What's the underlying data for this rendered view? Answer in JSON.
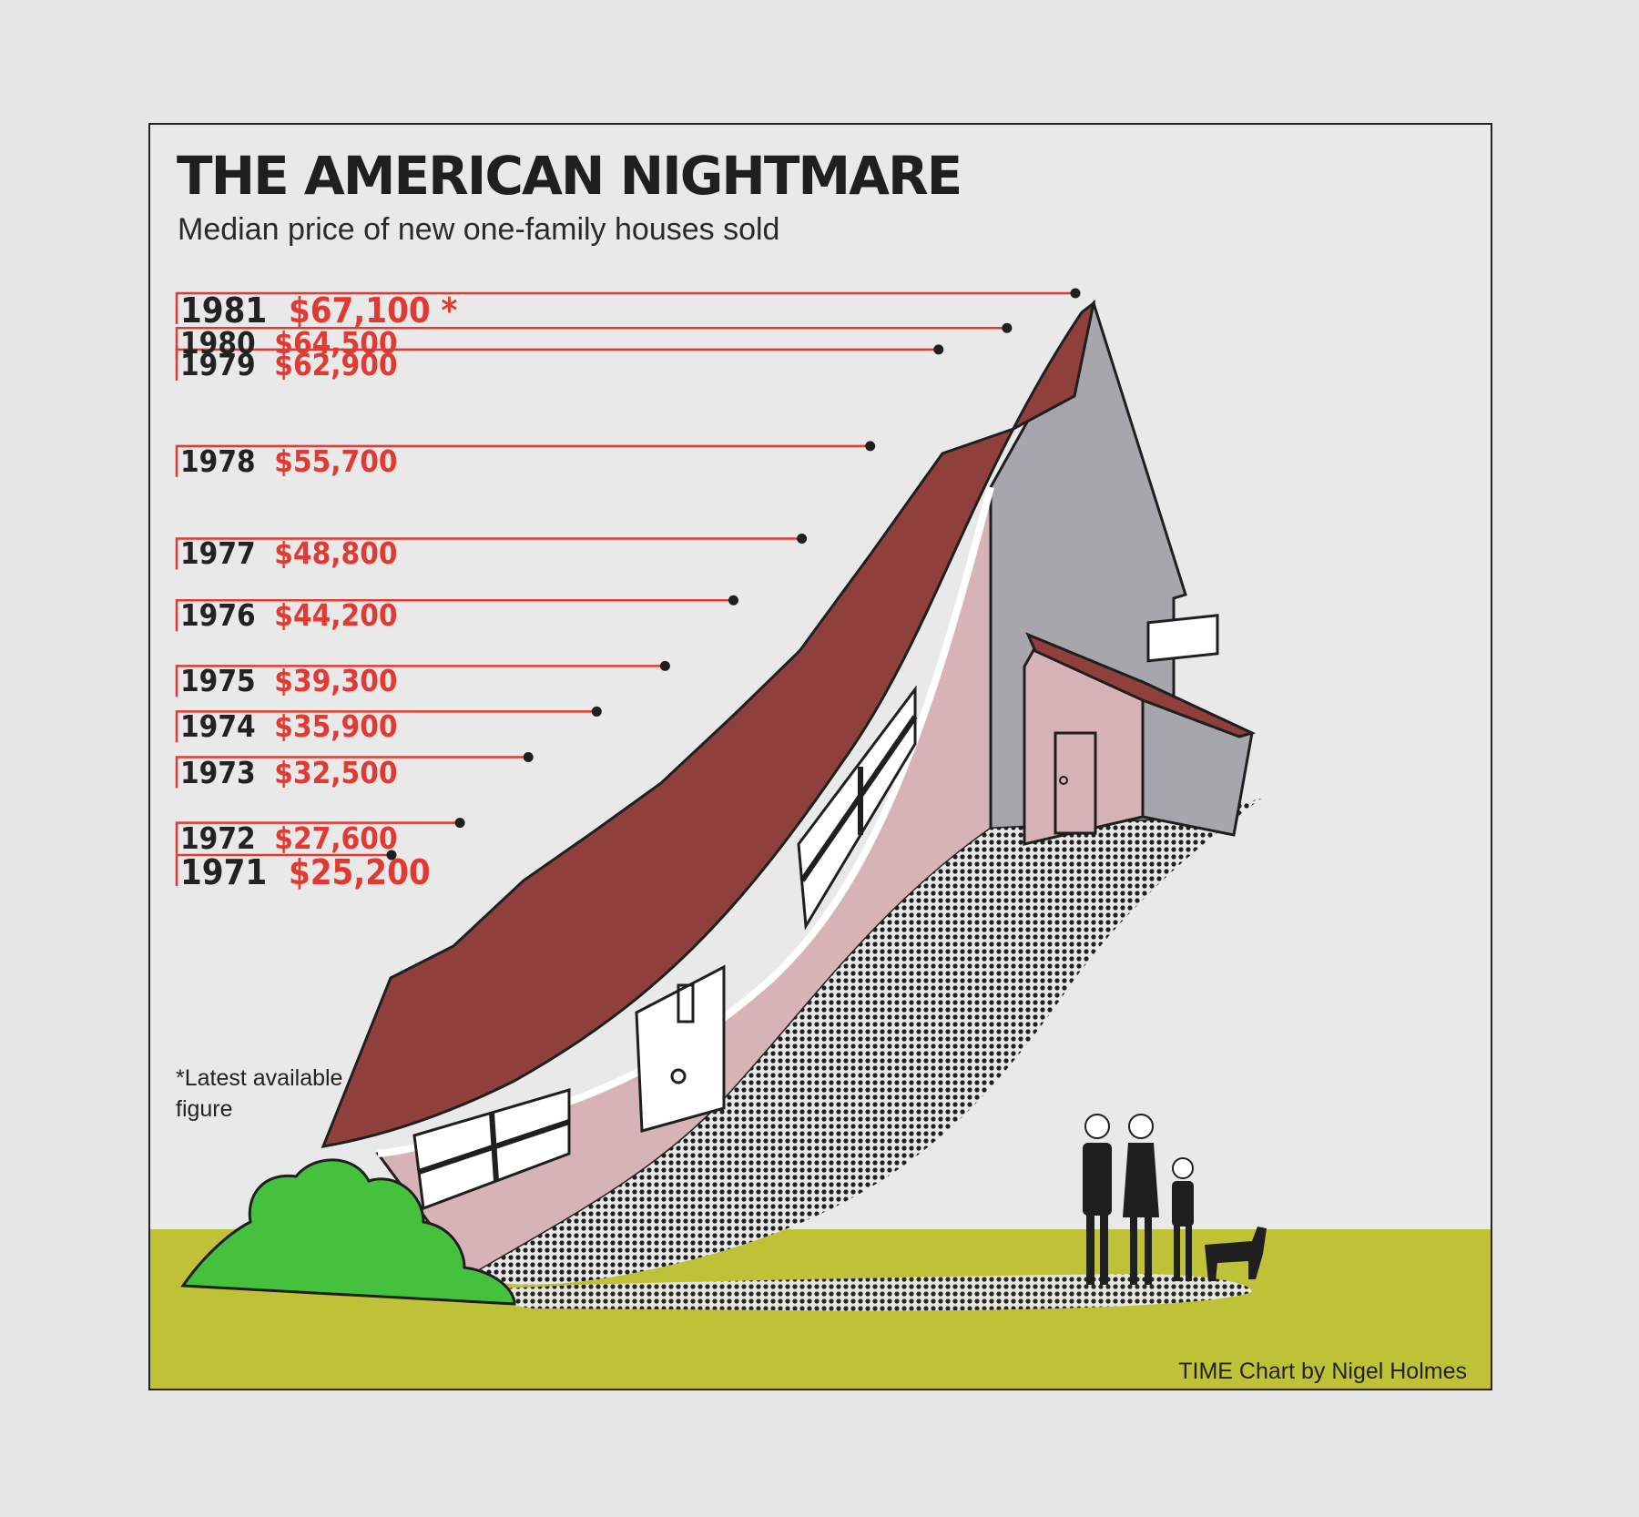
{
  "chart_data": {
    "type": "line",
    "title": "THE AMERICAN NIGHTMARE",
    "subtitle": "Median price of new  one-family houses sold",
    "x": [
      "1971",
      "1972",
      "1973",
      "1974",
      "1975",
      "1976",
      "1977",
      "1978",
      "1979",
      "1980",
      "1981"
    ],
    "values": [
      25200,
      27600,
      32500,
      35900,
      39300,
      44200,
      48800,
      55700,
      62900,
      64500,
      67100
    ],
    "value_labels": [
      "$25,200",
      "$27,600",
      "$32,500",
      "$35,900",
      "$39,300",
      "$44,200",
      "$48,800",
      "$55,700",
      "$62,900",
      "$64,500",
      "$67,100"
    ],
    "annotations": {
      "1981": "*"
    },
    "footnote": "*Latest available figure",
    "credit": "TIME Chart by Nigel Holmes"
  },
  "colors": {
    "background": "#e9e9ea",
    "accent_red": "#e03a32",
    "roof": "#8f3f3c",
    "wall_pink": "#d7b3b8",
    "wall_gray": "#a7a6ad",
    "grass": "#bfc236",
    "bush": "#45c13e",
    "ink": "#1f1f1f"
  },
  "illustration": {
    "house": "warped-house-icon",
    "bush": "bush-icon",
    "family": "family-with-dog-icon"
  }
}
